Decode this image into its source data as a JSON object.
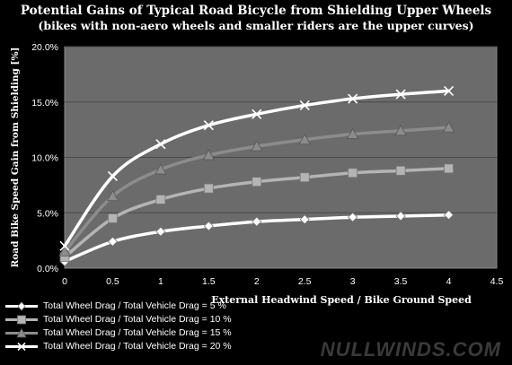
{
  "chart_data": {
    "type": "line",
    "title": "Potential Gains of  Typical Road Bicycle from Shielding Upper Wheels",
    "subtitle": "(bikes with non-aero wheels and smaller riders are the upper curves)",
    "xlabel": "External Headwind Speed / Bike Ground Speed",
    "ylabel": "Road Bike Speed Gain from Shielding [%]",
    "xlim": [
      0,
      4.5
    ],
    "ylim": [
      0,
      20
    ],
    "x_ticks": [
      "0",
      "0.5",
      "1",
      "1.5",
      "2",
      "2.5",
      "3",
      "3.5",
      "4",
      "4.5"
    ],
    "y_ticks": [
      "0.0%",
      "5.0%",
      "10.0%",
      "15.0%",
      "20.0%"
    ],
    "grid": "horizontal",
    "legend_position": "bottom-left",
    "x": [
      0,
      0.5,
      1,
      1.5,
      2,
      2.5,
      3,
      3.5,
      4
    ],
    "series": [
      {
        "name": "Total Wheel Drag / Total Vehicle Drag = 5 %",
        "marker": "diamond",
        "color": "#ffffff",
        "values": [
          0.6,
          2.4,
          3.3,
          3.8,
          4.2,
          4.4,
          4.6,
          4.7,
          4.8
        ]
      },
      {
        "name": "Total Wheel Drag / Total Vehicle Drag = 10 %",
        "marker": "square",
        "color": "#b4b4b4",
        "values": [
          1.0,
          4.5,
          6.2,
          7.2,
          7.8,
          8.2,
          8.6,
          8.8,
          9.0
        ]
      },
      {
        "name": "Total Wheel Drag / Total Vehicle Drag = 15 %",
        "marker": "triangle",
        "color": "#8c8c8c",
        "values": [
          1.5,
          6.5,
          8.9,
          10.2,
          11.0,
          11.6,
          12.1,
          12.4,
          12.7
        ]
      },
      {
        "name": "Total Wheel Drag / Total Vehicle Drag = 20 %",
        "marker": "x",
        "color": "#ffffff",
        "values": [
          2.0,
          8.3,
          11.2,
          12.9,
          13.9,
          14.7,
          15.3,
          15.7,
          16.0
        ]
      }
    ]
  },
  "watermark": "NULLWINDS.COM"
}
